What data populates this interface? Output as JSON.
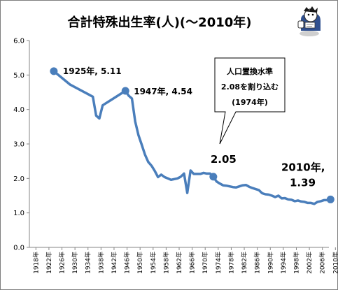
{
  "colors": {
    "series": "#4a7ebb",
    "axis": "#868686",
    "frame": "#7f7f7f"
  },
  "mascot": {
    "icon": "character-mascot-icon"
  },
  "chart_data": {
    "type": "line",
    "title": "合計特殊出生率(人)(〜2010年)",
    "xlabel": "",
    "ylabel": "",
    "xlim": [
      1918,
      2010
    ],
    "ylim": [
      0.0,
      6.0
    ],
    "yticks": [
      "0.0",
      "1.0",
      "2.0",
      "3.0",
      "4.0",
      "5.0",
      "6.0"
    ],
    "xticks": [
      "1918年",
      "1922年",
      "1926年",
      "1930年",
      "1934年",
      "1938年",
      "1942年",
      "1946年",
      "1950年",
      "1954年",
      "1958年",
      "1962年",
      "1966年",
      "1970年",
      "1974年",
      "1978年",
      "1982年",
      "1986年",
      "1990年",
      "1994年",
      "1998年",
      "2002年",
      "2006年",
      "2010年"
    ],
    "grid": false,
    "legend": "none",
    "series": [
      {
        "x": [
          1925,
          1930,
          1937,
          1938,
          1939,
          1940,
          1943,
          1947,
          1948,
          1949,
          1950,
          1951,
          1952,
          1953,
          1954,
          1955,
          1956,
          1957,
          1958,
          1959,
          1960,
          1961,
          1962,
          1963,
          1964,
          1965,
          1966,
          1967,
          1968,
          1969,
          1970,
          1971,
          1972,
          1973,
          1974,
          1975,
          1976,
          1977,
          1978,
          1979,
          1980,
          1981,
          1982,
          1983,
          1984,
          1985,
          1986,
          1987,
          1988,
          1989,
          1990,
          1991,
          1992,
          1993,
          1994,
          1995,
          1996,
          1997,
          1998,
          1999,
          2000,
          2001,
          2002,
          2003,
          2004,
          2005,
          2006,
          2007,
          2008,
          2009,
          2010
        ],
        "values": [
          5.11,
          4.72,
          4.37,
          3.82,
          3.74,
          4.12,
          4.3,
          4.54,
          4.4,
          4.32,
          3.65,
          3.26,
          2.98,
          2.69,
          2.48,
          2.37,
          2.22,
          2.04,
          2.11,
          2.04,
          2.0,
          1.96,
          1.98,
          2.0,
          2.05,
          2.14,
          1.58,
          2.23,
          2.13,
          2.13,
          2.13,
          2.16,
          2.14,
          2.14,
          2.05,
          1.91,
          1.85,
          1.8,
          1.79,
          1.77,
          1.75,
          1.74,
          1.77,
          1.8,
          1.81,
          1.76,
          1.72,
          1.69,
          1.66,
          1.57,
          1.54,
          1.53,
          1.5,
          1.46,
          1.5,
          1.42,
          1.43,
          1.39,
          1.38,
          1.34,
          1.36,
          1.33,
          1.32,
          1.29,
          1.29,
          1.26,
          1.32,
          1.34,
          1.37,
          1.37,
          1.39
        ]
      }
    ],
    "highlights": [
      {
        "x": 1925,
        "y": 5.11,
        "label": "1925年, 5.11"
      },
      {
        "x": 1947,
        "y": 4.54,
        "label": "1947年, 4.54"
      },
      {
        "x": 1974,
        "y": 2.05,
        "label": "2.05"
      },
      {
        "x": 2010,
        "y": 1.39,
        "label_line1": "2010年,",
        "label_line2": "1.39"
      }
    ],
    "callout": {
      "line1": "人口置換水準",
      "line2": "2.08を割り込む",
      "line3": "(1974年)"
    }
  }
}
